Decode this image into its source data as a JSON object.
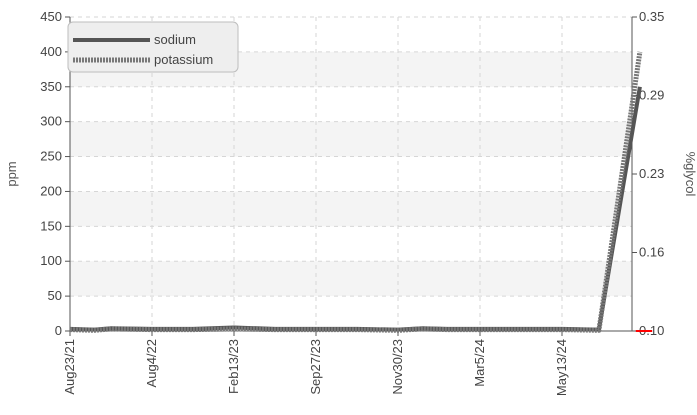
{
  "chart_data": {
    "type": "line",
    "ylabel": "ppm",
    "y2label": "%glycol",
    "ylim": [
      0,
      450
    ],
    "yticks": [
      0,
      50,
      100,
      150,
      200,
      250,
      300,
      350,
      400,
      450
    ],
    "y2lim": [
      0.1,
      0.35
    ],
    "y2ticks": [
      {
        "value": 0.1,
        "label": "0.10"
      },
      {
        "value": 0.1625,
        "label": "0.16"
      },
      {
        "value": 0.225,
        "label": "0.23"
      },
      {
        "value": 0.2875,
        "label": "0.29"
      },
      {
        "value": 0.35,
        "label": "0.35"
      }
    ],
    "categories": [
      "Aug23/21",
      "Aug4/22",
      "Feb13/23",
      "Sep27/23",
      "Nov30/23",
      "Mar5/24",
      "May13/24"
    ],
    "grid": true,
    "legend_position": "top-left",
    "series": [
      {
        "name": "sodium",
        "color": "#555555",
        "style": "solid",
        "points": [
          [
            0,
            3
          ],
          [
            0.3,
            2
          ],
          [
            0.5,
            4
          ],
          [
            1,
            3
          ],
          [
            1.5,
            3
          ],
          [
            2,
            5
          ],
          [
            2.5,
            3
          ],
          [
            3,
            3
          ],
          [
            3.5,
            3
          ],
          [
            4,
            2
          ],
          [
            4.3,
            4
          ],
          [
            4.6,
            3
          ],
          [
            5,
            3
          ],
          [
            5.5,
            3
          ],
          [
            6,
            3
          ],
          [
            6.45,
            2
          ],
          [
            6.95,
            350
          ]
        ]
      },
      {
        "name": "potassium",
        "color": "#777777",
        "style": "dashed",
        "points": [
          [
            0,
            2
          ],
          [
            0.3,
            1
          ],
          [
            0.5,
            3
          ],
          [
            1,
            2
          ],
          [
            1.5,
            2
          ],
          [
            2,
            3
          ],
          [
            2.5,
            2
          ],
          [
            3,
            2
          ],
          [
            3.5,
            2
          ],
          [
            4,
            1
          ],
          [
            4.3,
            3
          ],
          [
            4.6,
            2
          ],
          [
            5,
            2
          ],
          [
            5.5,
            2
          ],
          [
            6,
            2
          ],
          [
            6.45,
            1
          ],
          [
            6.95,
            400
          ]
        ]
      },
      {
        "name": "%glycol",
        "axis": "y2",
        "color": "#ff0000",
        "style": "solid",
        "points": [
          [
            6.9,
            0.1
          ],
          [
            7.1,
            0.1
          ]
        ]
      }
    ]
  }
}
